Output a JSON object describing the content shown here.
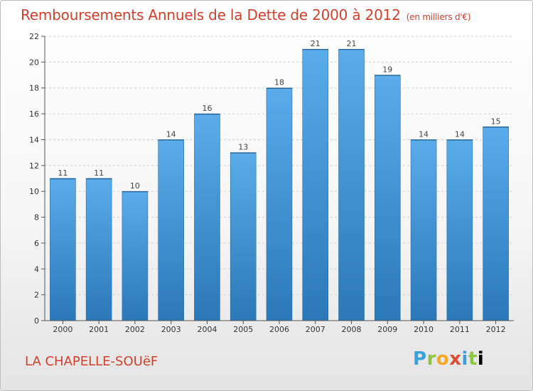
{
  "header": {
    "title": "Remboursements Annuels de la Dette de 2000 à 2012",
    "unit": "(en milliers d'€)"
  },
  "footer": {
    "commune": "LA CHAPELLE-SOUëF",
    "logo_letters": [
      "P",
      "r",
      "o",
      "x",
      "i",
      "t",
      "i"
    ]
  },
  "colors": {
    "title": "#d23f2a",
    "bar_top": "#5aaceb",
    "bar_bottom": "#2a78b8"
  },
  "chart_data": {
    "type": "bar",
    "title": "Remboursements Annuels de la Dette de 2000 à 2012",
    "ylabel": "en milliers d'€",
    "xlabel": "",
    "categories": [
      "2000",
      "2001",
      "2002",
      "2003",
      "2004",
      "2005",
      "2006",
      "2007",
      "2008",
      "2009",
      "2010",
      "2011",
      "2012"
    ],
    "values": [
      11,
      11,
      10,
      14,
      16,
      13,
      18,
      21,
      21,
      19,
      14,
      14,
      15
    ],
    "ylim": [
      0,
      22
    ],
    "yticks": [
      0,
      2,
      4,
      6,
      8,
      10,
      12,
      14,
      16,
      18,
      20,
      22
    ],
    "grid": true
  }
}
